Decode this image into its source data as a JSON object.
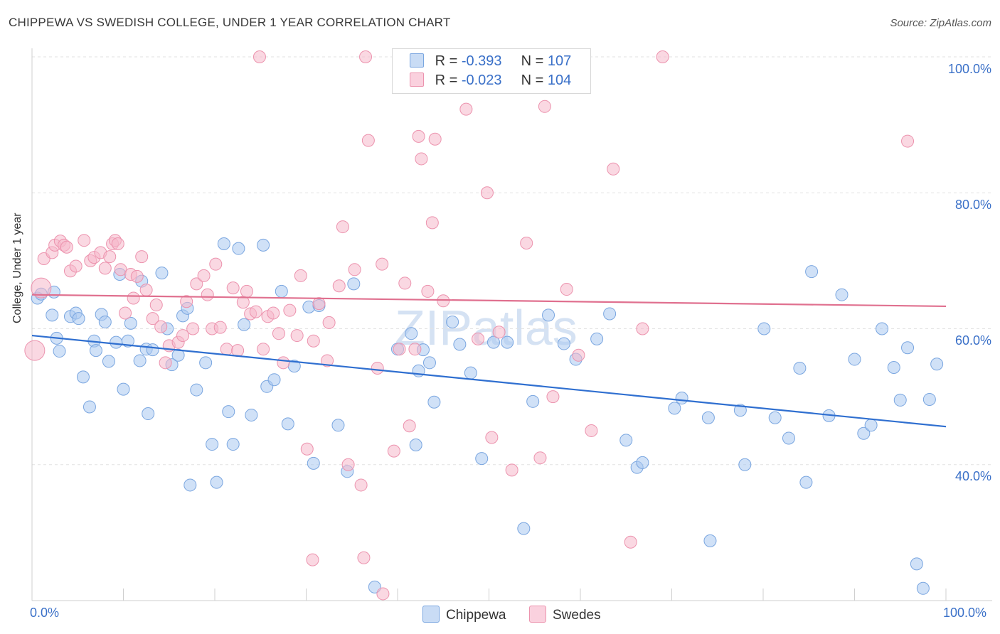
{
  "header": {
    "title": "CHIPPEWA VS SWEDISH COLLEGE, UNDER 1 YEAR CORRELATION CHART",
    "source": "Source: ZipAtlas.com"
  },
  "watermark": {
    "zip": "ZIP",
    "atlas": "atlas"
  },
  "stats": [
    {
      "r_label": "R =",
      "r_value": "-0.393",
      "n_label": "N =",
      "n_value": "107",
      "color": "#a9c8f0"
    },
    {
      "r_label": "R =",
      "r_value": "-0.023",
      "n_label": "N =",
      "n_value": "104",
      "color": "#f5b8cb"
    }
  ],
  "chart_data": {
    "type": "scatter",
    "ylabel": "College, Under 1 year",
    "xlim": [
      0,
      100
    ],
    "ylim": [
      20,
      100
    ],
    "x_tick_labels": [
      "0.0%",
      "100.0%"
    ],
    "y_ticks": [
      40,
      60,
      80,
      100
    ],
    "y_tick_labels": [
      "40.0%",
      "60.0%",
      "80.0%",
      "100.0%"
    ],
    "grid": "horizontal dashed",
    "legend_position": "bottom-center",
    "series": [
      {
        "name": "Chippewa",
        "color": "#a9c8f0",
        "stroke": "#7aa6e0",
        "trend": {
          "x": [
            0,
            100
          ],
          "y": [
            59.0,
            45.6
          ],
          "color": "#2f6fd0"
        },
        "points": [
          [
            0.6,
            64.5
          ],
          [
            1.0,
            65.1
          ],
          [
            2.2,
            62.0
          ],
          [
            2.4,
            65.4
          ],
          [
            2.7,
            58.6
          ],
          [
            3.0,
            56.7
          ],
          [
            4.2,
            61.8
          ],
          [
            4.8,
            62.3
          ],
          [
            5.1,
            61.5
          ],
          [
            5.6,
            52.9
          ],
          [
            6.3,
            48.5
          ],
          [
            6.8,
            58.2
          ],
          [
            7.0,
            56.8
          ],
          [
            7.6,
            62.1
          ],
          [
            8.0,
            61.0
          ],
          [
            8.4,
            55.2
          ],
          [
            9.2,
            58.0
          ],
          [
            9.6,
            68.0
          ],
          [
            10.0,
            51.1
          ],
          [
            10.5,
            58.2
          ],
          [
            10.8,
            60.8
          ],
          [
            11.8,
            55.3
          ],
          [
            12.0,
            67.0
          ],
          [
            12.5,
            57.0
          ],
          [
            12.7,
            47.5
          ],
          [
            13.2,
            56.9
          ],
          [
            14.2,
            68.2
          ],
          [
            14.8,
            60.0
          ],
          [
            15.3,
            54.7
          ],
          [
            16.0,
            56.1
          ],
          [
            16.5,
            61.9
          ],
          [
            17.0,
            63.0
          ],
          [
            17.3,
            37.0
          ],
          [
            18.0,
            51.0
          ],
          [
            19.0,
            55.0
          ],
          [
            19.7,
            43.0
          ],
          [
            20.2,
            37.4
          ],
          [
            21.0,
            72.5
          ],
          [
            21.5,
            47.8
          ],
          [
            22.0,
            43.0
          ],
          [
            22.6,
            71.8
          ],
          [
            23.2,
            60.6
          ],
          [
            24.0,
            47.3
          ],
          [
            25.3,
            72.3
          ],
          [
            25.7,
            51.5
          ],
          [
            26.5,
            52.5
          ],
          [
            27.3,
            65.5
          ],
          [
            28.0,
            46.0
          ],
          [
            28.7,
            54.5
          ],
          [
            30.3,
            63.2
          ],
          [
            30.8,
            40.2
          ],
          [
            31.4,
            63.4
          ],
          [
            33.5,
            45.8
          ],
          [
            34.5,
            39.0
          ],
          [
            35.2,
            66.6
          ],
          [
            37.5,
            22.0
          ],
          [
            40.0,
            57.0
          ],
          [
            41.5,
            59.3
          ],
          [
            42.0,
            42.9
          ],
          [
            42.3,
            53.8
          ],
          [
            42.8,
            56.9
          ],
          [
            43.5,
            55.0
          ],
          [
            44.0,
            49.2
          ],
          [
            46.0,
            61.0
          ],
          [
            46.8,
            57.7
          ],
          [
            48.0,
            53.5
          ],
          [
            49.2,
            40.9
          ],
          [
            50.5,
            58.0
          ],
          [
            52.0,
            58.0
          ],
          [
            53.8,
            30.6
          ],
          [
            54.8,
            49.3
          ],
          [
            56.5,
            62.0
          ],
          [
            58.2,
            57.8
          ],
          [
            59.5,
            55.5
          ],
          [
            61.8,
            58.5
          ],
          [
            63.2,
            62.2
          ],
          [
            65.0,
            43.6
          ],
          [
            66.2,
            39.6
          ],
          [
            66.8,
            40.3
          ],
          [
            70.3,
            48.3
          ],
          [
            71.1,
            49.8
          ],
          [
            74.0,
            46.9
          ],
          [
            74.2,
            28.8
          ],
          [
            77.5,
            48.0
          ],
          [
            78.0,
            40.0
          ],
          [
            80.1,
            60.0
          ],
          [
            81.3,
            46.9
          ],
          [
            82.8,
            43.9
          ],
          [
            84.0,
            54.2
          ],
          [
            84.7,
            37.4
          ],
          [
            85.3,
            68.4
          ],
          [
            87.2,
            47.2
          ],
          [
            88.6,
            65.0
          ],
          [
            90.0,
            55.5
          ],
          [
            91.0,
            44.6
          ],
          [
            91.8,
            45.8
          ],
          [
            93.0,
            60.0
          ],
          [
            94.3,
            54.3
          ],
          [
            95.0,
            49.5
          ],
          [
            95.8,
            57.2
          ],
          [
            96.8,
            25.4
          ],
          [
            97.5,
            21.8
          ],
          [
            98.2,
            49.6
          ],
          [
            99.0,
            54.8
          ]
        ]
      },
      {
        "name": "Swedes",
        "color": "#f5b8cb",
        "stroke": "#ec93ae",
        "trend": {
          "x": [
            0,
            100
          ],
          "y": [
            65.0,
            63.3
          ],
          "color": "#e0708f"
        },
        "points": [
          [
            0.3,
            56.8
          ],
          [
            1.0,
            66.0
          ],
          [
            1.3,
            70.3
          ],
          [
            2.2,
            71.2
          ],
          [
            2.5,
            72.3
          ],
          [
            3.1,
            72.9
          ],
          [
            3.5,
            72.3
          ],
          [
            3.8,
            72.0
          ],
          [
            4.2,
            68.5
          ],
          [
            4.8,
            69.2
          ],
          [
            5.7,
            73.0
          ],
          [
            6.4,
            70.0
          ],
          [
            6.8,
            70.5
          ],
          [
            7.5,
            71.2
          ],
          [
            8.0,
            68.9
          ],
          [
            8.5,
            70.6
          ],
          [
            8.8,
            72.5
          ],
          [
            9.1,
            73.0
          ],
          [
            9.4,
            72.5
          ],
          [
            9.7,
            68.7
          ],
          [
            10.2,
            62.3
          ],
          [
            10.8,
            68.0
          ],
          [
            11.1,
            64.5
          ],
          [
            11.5,
            67.7
          ],
          [
            12.0,
            70.6
          ],
          [
            12.5,
            65.7
          ],
          [
            13.2,
            61.5
          ],
          [
            13.6,
            63.5
          ],
          [
            14.1,
            60.3
          ],
          [
            14.6,
            55.0
          ],
          [
            15.0,
            57.5
          ],
          [
            16.0,
            58.0
          ],
          [
            16.5,
            59.0
          ],
          [
            16.9,
            64.0
          ],
          [
            17.6,
            60.0
          ],
          [
            18.0,
            66.6
          ],
          [
            18.8,
            67.8
          ],
          [
            19.2,
            65.0
          ],
          [
            19.7,
            60.0
          ],
          [
            20.1,
            69.5
          ],
          [
            20.6,
            60.2
          ],
          [
            21.3,
            57.0
          ],
          [
            22.0,
            66.0
          ],
          [
            22.5,
            56.8
          ],
          [
            23.1,
            63.9
          ],
          [
            23.5,
            65.5
          ],
          [
            23.9,
            62.2
          ],
          [
            24.5,
            62.5
          ],
          [
            25.3,
            57.0
          ],
          [
            25.8,
            61.8
          ],
          [
            26.4,
            62.3
          ],
          [
            27.0,
            59.3
          ],
          [
            27.5,
            55.0
          ],
          [
            28.2,
            62.7
          ],
          [
            29.0,
            59.0
          ],
          [
            29.4,
            67.8
          ],
          [
            30.1,
            42.3
          ],
          [
            30.7,
            26.0
          ],
          [
            31.4,
            63.7
          ],
          [
            32.5,
            60.9
          ],
          [
            33.6,
            66.3
          ],
          [
            34.0,
            75.0
          ],
          [
            34.6,
            40.0
          ],
          [
            35.3,
            68.7
          ],
          [
            36.0,
            37.0
          ],
          [
            36.3,
            26.3
          ],
          [
            36.8,
            87.7
          ],
          [
            37.8,
            54.2
          ],
          [
            38.3,
            69.5
          ],
          [
            39.6,
            42.0
          ],
          [
            40.2,
            57.0
          ],
          [
            40.8,
            66.7
          ],
          [
            41.3,
            45.7
          ],
          [
            41.9,
            57.0
          ],
          [
            42.3,
            88.3
          ],
          [
            42.6,
            85.0
          ],
          [
            43.3,
            65.5
          ],
          [
            43.8,
            75.6
          ],
          [
            44.1,
            87.9
          ],
          [
            45.0,
            64.1
          ],
          [
            46.6,
            100.0
          ],
          [
            47.5,
            92.3
          ],
          [
            48.8,
            58.5
          ],
          [
            49.8,
            80.0
          ],
          [
            50.3,
            44.0
          ],
          [
            51.1,
            59.5
          ],
          [
            52.5,
            39.2
          ],
          [
            54.1,
            72.6
          ],
          [
            55.6,
            41.0
          ],
          [
            56.1,
            92.7
          ],
          [
            57.0,
            50.0
          ],
          [
            58.5,
            65.8
          ],
          [
            59.8,
            56.1
          ],
          [
            61.2,
            45.0
          ],
          [
            63.6,
            83.5
          ],
          [
            65.5,
            28.6
          ],
          [
            66.8,
            60.0
          ],
          [
            69.0,
            100.0
          ],
          [
            95.8,
            87.6
          ],
          [
            24.9,
            100.0
          ],
          [
            36.5,
            100.0
          ],
          [
            32.3,
            55.3
          ],
          [
            38.4,
            21.0
          ],
          [
            30.8,
            58.2
          ]
        ]
      }
    ]
  }
}
